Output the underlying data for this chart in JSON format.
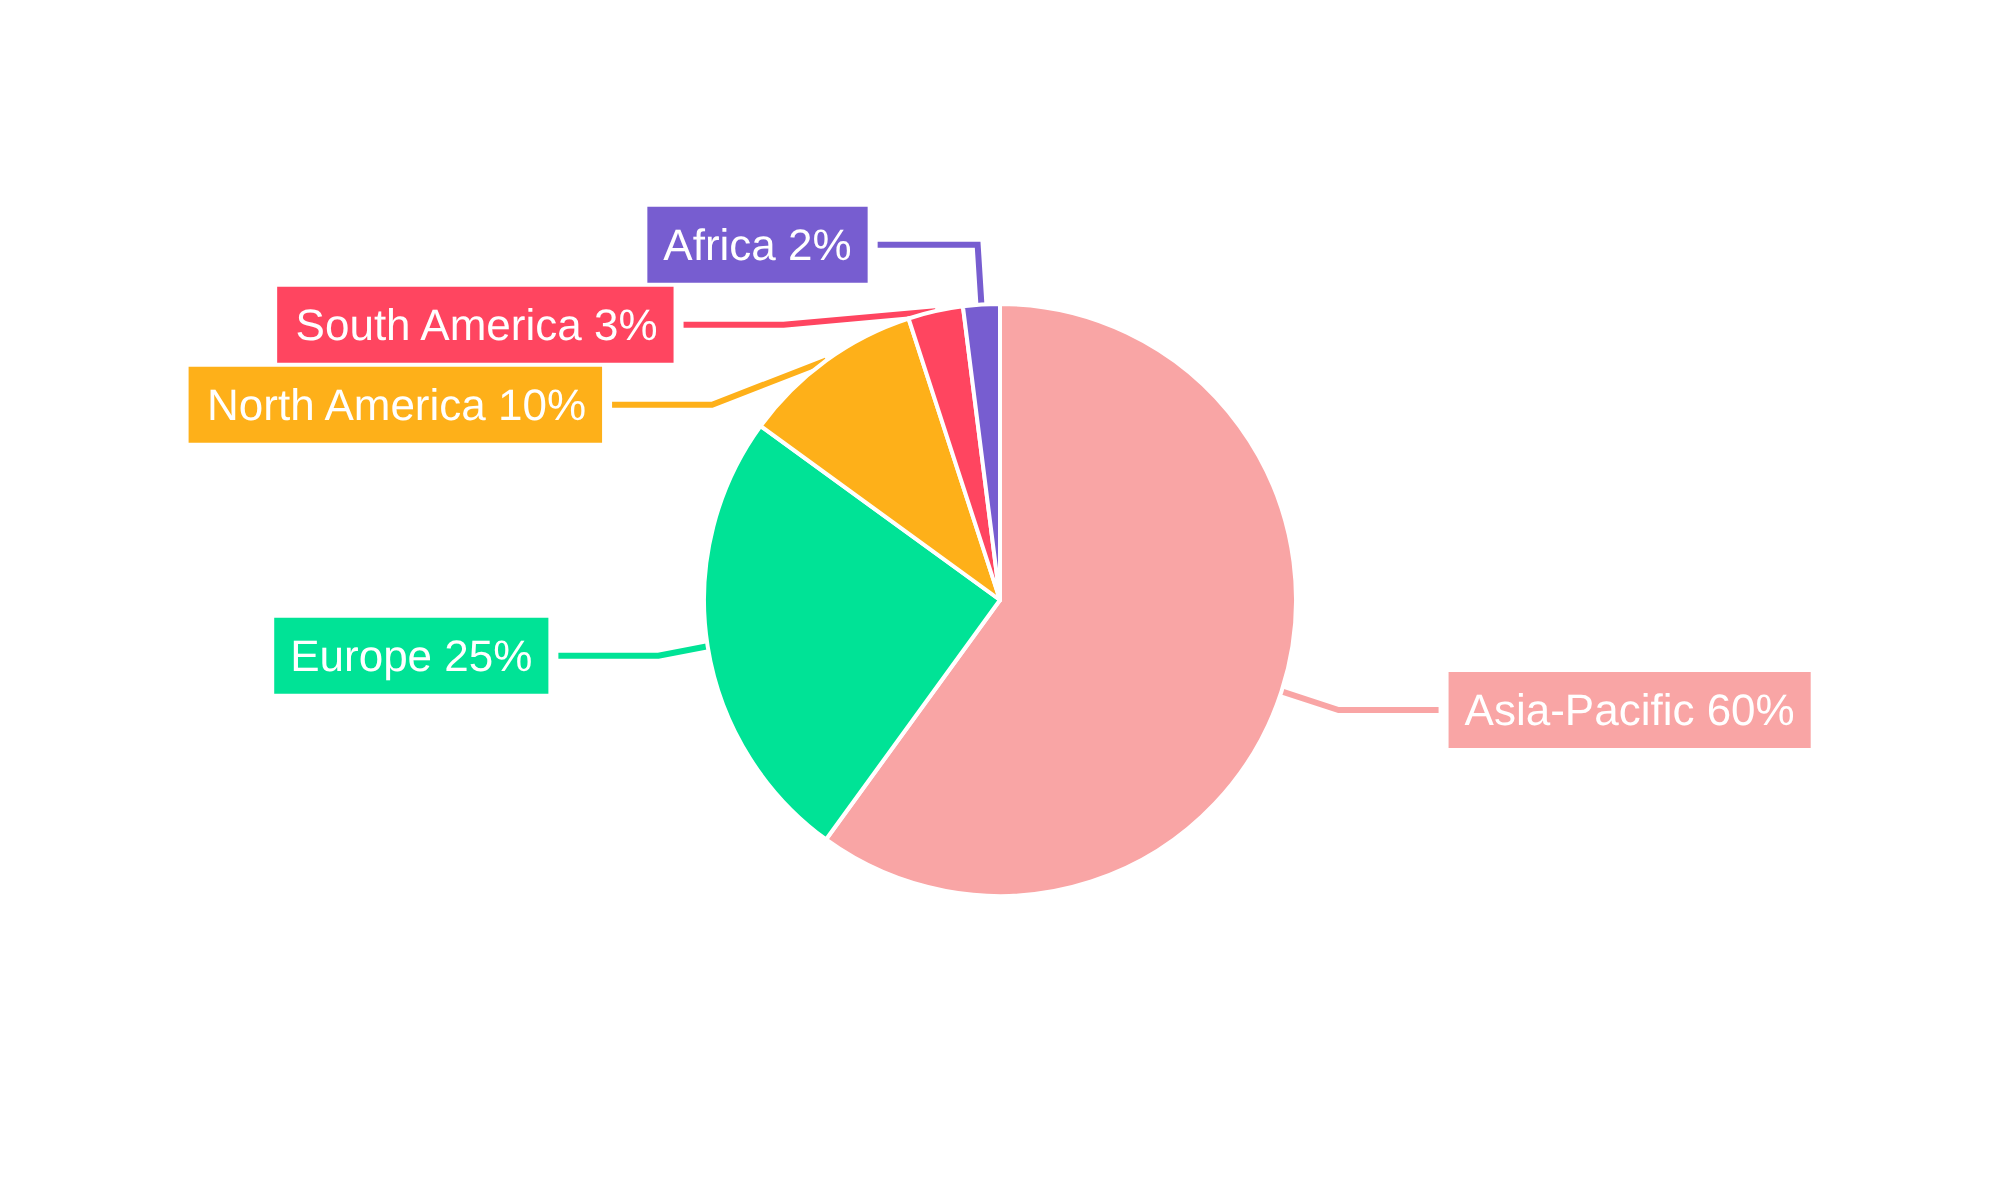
{
  "chart_data": {
    "type": "pie",
    "categories": [
      "Asia-Pacific",
      "Europe",
      "North America",
      "South America",
      "Africa"
    ],
    "values": [
      60,
      25,
      10,
      3,
      2
    ],
    "value_labels": [
      "60%",
      "25%",
      "10%",
      "3%",
      "2%"
    ],
    "colors": [
      "#f9a5a5",
      "#00e396",
      "#feb019",
      "#ff4560",
      "#775dd0"
    ],
    "legend": false
  }
}
